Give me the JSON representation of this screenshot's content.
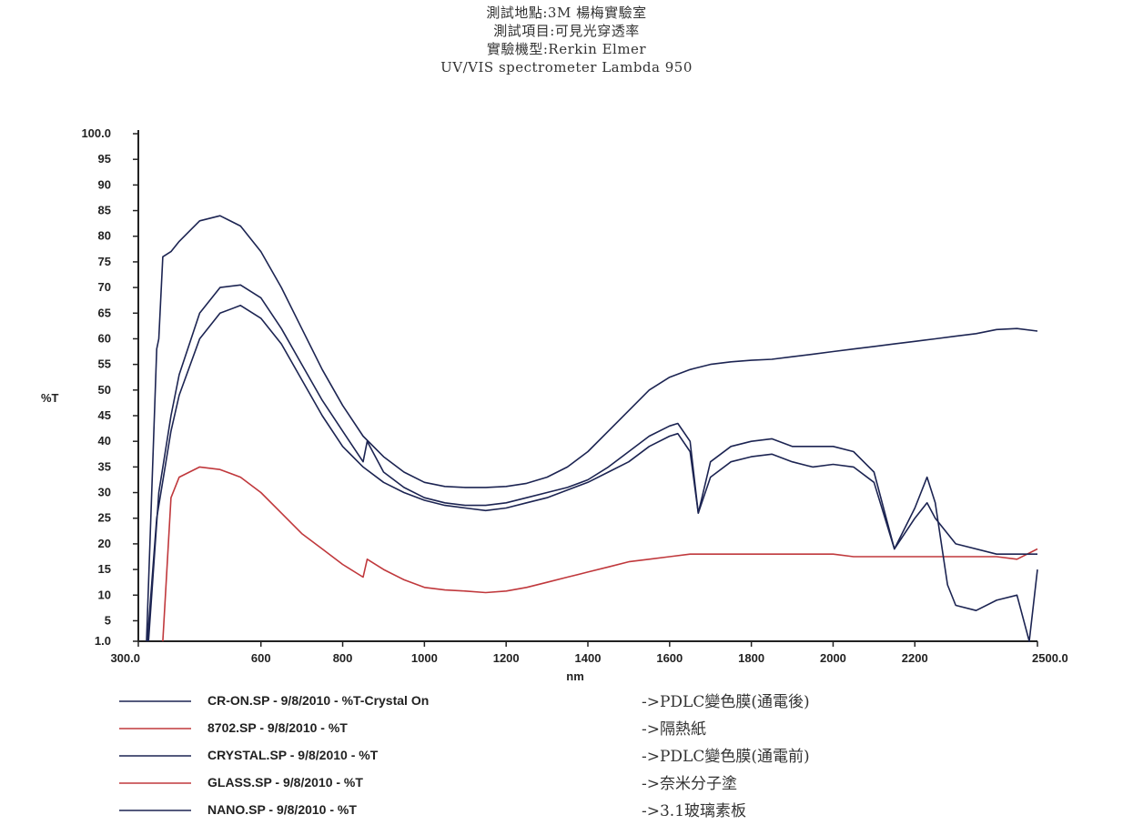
{
  "header": {
    "line1": "測試地點:3M 楊梅實驗室",
    "line2": "測試項目:可見光穿透率",
    "line3": "實驗機型:Rerkin Elmer",
    "line4": "UV/VIS spectrometer  Lambda 950"
  },
  "colors": {
    "dark": "#1c2452",
    "red": "#c0383c",
    "axis": "#222222"
  },
  "chart_data": {
    "type": "line",
    "xlabel": "nm",
    "ylabel": "%T",
    "xlim": [
      300,
      2500
    ],
    "ylim": [
      1,
      100
    ],
    "x_ticks": [
      {
        "value": 300,
        "label": "300.0"
      },
      {
        "value": 600,
        "label": "600"
      },
      {
        "value": 800,
        "label": "800"
      },
      {
        "value": 1000,
        "label": "1000"
      },
      {
        "value": 1200,
        "label": "1200"
      },
      {
        "value": 1400,
        "label": "1400"
      },
      {
        "value": 1600,
        "label": "1600"
      },
      {
        "value": 1800,
        "label": "1800"
      },
      {
        "value": 2000,
        "label": "2000"
      },
      {
        "value": 2200,
        "label": "2200"
      },
      {
        "value": 2500,
        "label": "2500.0"
      }
    ],
    "y_ticks": [
      {
        "value": 100,
        "label": "100.0"
      },
      {
        "value": 95,
        "label": "95"
      },
      {
        "value": 90,
        "label": "90"
      },
      {
        "value": 85,
        "label": "85"
      },
      {
        "value": 80,
        "label": "80"
      },
      {
        "value": 75,
        "label": "75"
      },
      {
        "value": 70,
        "label": "70"
      },
      {
        "value": 65,
        "label": "65"
      },
      {
        "value": 60,
        "label": "60"
      },
      {
        "value": 55,
        "label": "55"
      },
      {
        "value": 50,
        "label": "50"
      },
      {
        "value": 45,
        "label": "45"
      },
      {
        "value": 40,
        "label": "40"
      },
      {
        "value": 35,
        "label": "35"
      },
      {
        "value": 30,
        "label": "30"
      },
      {
        "value": 25,
        "label": "25"
      },
      {
        "value": 20,
        "label": "20"
      },
      {
        "value": 15,
        "label": "15"
      },
      {
        "value": 10,
        "label": "10"
      },
      {
        "value": 5,
        "label": "5"
      },
      {
        "value": 1,
        "label": "1.0"
      }
    ],
    "legend_position": "bottom",
    "series": [
      {
        "name": "CR-ON.SP - 9/8/2010 - %T-Crystal On",
        "description": "->PDLC變色膜(通電後)",
        "color": "#1c2452",
        "points": [
          [
            320,
            1
          ],
          [
            335,
            35
          ],
          [
            345,
            58
          ],
          [
            350,
            60
          ],
          [
            360,
            76
          ],
          [
            380,
            77
          ],
          [
            400,
            79
          ],
          [
            450,
            83
          ],
          [
            500,
            84
          ],
          [
            550,
            82
          ],
          [
            600,
            77
          ],
          [
            650,
            70
          ],
          [
            700,
            62
          ],
          [
            750,
            54
          ],
          [
            800,
            47
          ],
          [
            850,
            41
          ],
          [
            900,
            37
          ],
          [
            950,
            34
          ],
          [
            1000,
            32
          ],
          [
            1050,
            31.2
          ],
          [
            1100,
            31
          ],
          [
            1150,
            31
          ],
          [
            1200,
            31.2
          ],
          [
            1250,
            31.8
          ],
          [
            1300,
            33
          ],
          [
            1350,
            35
          ],
          [
            1400,
            38
          ],
          [
            1450,
            42
          ],
          [
            1500,
            46
          ],
          [
            1550,
            50
          ],
          [
            1600,
            52.5
          ],
          [
            1650,
            54
          ],
          [
            1700,
            55
          ],
          [
            1750,
            55.5
          ],
          [
            1800,
            55.8
          ],
          [
            1850,
            56
          ],
          [
            1900,
            56.5
          ],
          [
            1950,
            57
          ],
          [
            2000,
            57.5
          ],
          [
            2050,
            58
          ],
          [
            2100,
            58.5
          ],
          [
            2150,
            59
          ],
          [
            2200,
            59.5
          ],
          [
            2250,
            60
          ],
          [
            2300,
            60.5
          ],
          [
            2350,
            61
          ],
          [
            2400,
            61.8
          ],
          [
            2450,
            62
          ],
          [
            2500,
            61.5
          ]
        ]
      },
      {
        "name": "8702.SP - 9/8/2010 - %T",
        "description": "->隔熱紙",
        "color": "#c0383c",
        "points": [
          [
            360,
            1
          ],
          [
            380,
            29
          ],
          [
            400,
            33
          ],
          [
            450,
            35
          ],
          [
            500,
            34.5
          ],
          [
            550,
            33
          ],
          [
            600,
            30
          ],
          [
            650,
            26
          ],
          [
            700,
            22
          ],
          [
            750,
            19
          ],
          [
            800,
            16
          ],
          [
            850,
            13.5
          ],
          [
            860,
            17
          ],
          [
            900,
            15
          ],
          [
            950,
            13
          ],
          [
            1000,
            11.5
          ],
          [
            1050,
            11
          ],
          [
            1100,
            10.8
          ],
          [
            1150,
            10.5
          ],
          [
            1200,
            10.8
          ],
          [
            1250,
            11.5
          ],
          [
            1300,
            12.5
          ],
          [
            1350,
            13.5
          ],
          [
            1400,
            14.5
          ],
          [
            1450,
            15.5
          ],
          [
            1500,
            16.5
          ],
          [
            1550,
            17
          ],
          [
            1600,
            17.5
          ],
          [
            1650,
            18
          ],
          [
            1700,
            18
          ],
          [
            1750,
            18
          ],
          [
            1800,
            18
          ],
          [
            1850,
            18
          ],
          [
            1900,
            18
          ],
          [
            1950,
            18
          ],
          [
            2000,
            18
          ],
          [
            2050,
            17.5
          ],
          [
            2100,
            17.5
          ],
          [
            2150,
            17.5
          ],
          [
            2200,
            17.5
          ],
          [
            2250,
            17.5
          ],
          [
            2300,
            17.5
          ],
          [
            2350,
            17.5
          ],
          [
            2400,
            17.5
          ],
          [
            2450,
            17
          ],
          [
            2500,
            19
          ]
        ]
      },
      {
        "name": "CRYSTAL.SP - 9/8/2010 - %T",
        "description": "->PDLC變色膜(通電前)",
        "color": "#1c2452",
        "points": [
          [
            325,
            1
          ],
          [
            350,
            30
          ],
          [
            380,
            45
          ],
          [
            400,
            53
          ],
          [
            450,
            65
          ],
          [
            500,
            70
          ],
          [
            550,
            70.5
          ],
          [
            600,
            68
          ],
          [
            650,
            62
          ],
          [
            700,
            55
          ],
          [
            750,
            48
          ],
          [
            800,
            42
          ],
          [
            850,
            36
          ],
          [
            860,
            40
          ],
          [
            900,
            34
          ],
          [
            950,
            31
          ],
          [
            1000,
            29
          ],
          [
            1050,
            28
          ],
          [
            1100,
            27.5
          ],
          [
            1150,
            27.5
          ],
          [
            1200,
            28
          ],
          [
            1250,
            29
          ],
          [
            1300,
            30
          ],
          [
            1350,
            31
          ],
          [
            1400,
            32.5
          ],
          [
            1450,
            35
          ],
          [
            1500,
            38
          ],
          [
            1550,
            41
          ],
          [
            1600,
            43
          ],
          [
            1620,
            43.5
          ],
          [
            1650,
            40
          ],
          [
            1670,
            26
          ],
          [
            1700,
            36
          ],
          [
            1750,
            39
          ],
          [
            1800,
            40
          ],
          [
            1850,
            40.5
          ],
          [
            1900,
            39
          ],
          [
            1950,
            39
          ],
          [
            2000,
            39
          ],
          [
            2050,
            38
          ],
          [
            2100,
            34
          ],
          [
            2150,
            19
          ],
          [
            2200,
            27
          ],
          [
            2230,
            33
          ],
          [
            2250,
            28
          ],
          [
            2280,
            12
          ],
          [
            2300,
            8
          ],
          [
            2350,
            7
          ],
          [
            2400,
            9
          ],
          [
            2450,
            10
          ],
          [
            2480,
            1
          ],
          [
            2500,
            15
          ]
        ]
      },
      {
        "name": "GLASS.SP - 9/8/2010 - %T",
        "description": "->奈米分子塗",
        "color": "#c0383c",
        "points": []
      },
      {
        "name": "NANO.SP - 9/8/2010 - %T",
        "description": "->3.1玻璃素板",
        "color": "#1c2452",
        "points": [
          [
            322,
            1
          ],
          [
            345,
            25
          ],
          [
            380,
            42
          ],
          [
            400,
            49
          ],
          [
            450,
            60
          ],
          [
            500,
            65
          ],
          [
            550,
            66.5
          ],
          [
            600,
            64
          ],
          [
            650,
            59
          ],
          [
            700,
            52
          ],
          [
            750,
            45
          ],
          [
            800,
            39
          ],
          [
            850,
            35
          ],
          [
            900,
            32
          ],
          [
            950,
            30
          ],
          [
            1000,
            28.5
          ],
          [
            1050,
            27.5
          ],
          [
            1100,
            27
          ],
          [
            1150,
            26.5
          ],
          [
            1200,
            27
          ],
          [
            1250,
            28
          ],
          [
            1300,
            29
          ],
          [
            1350,
            30.5
          ],
          [
            1400,
            32
          ],
          [
            1450,
            34
          ],
          [
            1500,
            36
          ],
          [
            1550,
            39
          ],
          [
            1600,
            41
          ],
          [
            1620,
            41.5
          ],
          [
            1650,
            38
          ],
          [
            1670,
            26
          ],
          [
            1700,
            33
          ],
          [
            1750,
            36
          ],
          [
            1800,
            37
          ],
          [
            1850,
            37.5
          ],
          [
            1900,
            36
          ],
          [
            1950,
            35
          ],
          [
            2000,
            35.5
          ],
          [
            2050,
            35
          ],
          [
            2100,
            32
          ],
          [
            2150,
            19
          ],
          [
            2200,
            25
          ],
          [
            2230,
            28
          ],
          [
            2250,
            25
          ],
          [
            2300,
            20
          ],
          [
            2400,
            18
          ],
          [
            2500,
            18
          ]
        ]
      }
    ]
  }
}
